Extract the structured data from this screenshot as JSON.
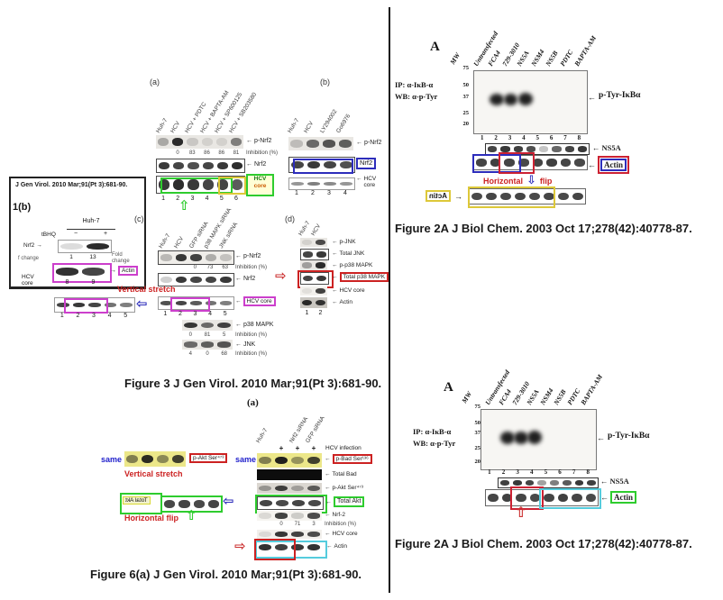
{
  "colors": {
    "annotation_red": "#cc2222",
    "annotation_blue": "#2d2dbb",
    "annotation_green": "#2ecc2e",
    "annotation_magenta": "#cc3fcc",
    "annotation_yellow": "#ddc839",
    "annotation_cyan": "#55ccdd"
  },
  "icons": {
    "band_arrow_left": "←",
    "band_arrow_right": "→",
    "hollow_left": "⇦",
    "hollow_right": "⇨",
    "hollow_up": "⇧",
    "hollow_down": "⇩"
  },
  "left": {
    "inset": {
      "citation": "J Gen Virol. 2010 Mar;91(Pt 3):681-90.",
      "panel_label": "1(b)",
      "cell_line": "Huh-7",
      "tbhq": "tBHQ",
      "minus": "−",
      "plus": "+",
      "nrf2": "Nrf2",
      "fold_left": "f change",
      "fold_values": [
        "1",
        "13"
      ],
      "fold_right": "Fold change",
      "actin": "Actin",
      "hcv_core": "HCV core",
      "lane_numbers": [
        "8",
        "9"
      ]
    },
    "panel_a": {
      "label": "(a)",
      "lanes": [
        "Huh-7",
        "HCV",
        "HCV + PDTC",
        "HCV + BAPTA-AM",
        "HCV + SP600125",
        "HCV + SB203580"
      ],
      "row_pnrf2": "p-Nrf2",
      "inhibition_values": [
        "0",
        "83",
        "86",
        "86",
        "81"
      ],
      "inhibition_label": "Inhibition (%)",
      "row_nrf2": "Nrf2",
      "hcv_core_line1": "HCV",
      "hcv_core_line2": "core",
      "lane_numbers": [
        "1",
        "2",
        "3",
        "4",
        "5",
        "6"
      ]
    },
    "panel_b": {
      "label": "(b)",
      "lanes": [
        "Huh-7",
        "HCV",
        "LY294002",
        "Go6976"
      ],
      "row_pnrf2": "p-Nrf2",
      "row_nrf2": "Nrf2",
      "row_hcv_core": "HCV core",
      "lane_numbers": [
        "1",
        "2",
        "3",
        "4"
      ]
    },
    "panel_c": {
      "label": "(c)",
      "lanes": [
        "Huh-7",
        "HCV",
        "GFP siRNA",
        "p38 MAPK siRNA",
        "JNK siRNA"
      ],
      "row_pnrf2": "p-Nrf2",
      "inh1": [
        "0",
        "73",
        "63"
      ],
      "row_nrf2": "Nrf2",
      "row_hcv_core": "HCV core",
      "lane_numbers": [
        "1",
        "2",
        "3",
        "4",
        "5"
      ],
      "row_p38": "p38 MAPK",
      "inh2": [
        "0",
        "81",
        "5"
      ],
      "row_jnk": "JNK",
      "inh3": [
        "4",
        "0",
        "68"
      ],
      "inhibition_label": "Inhibition (%)"
    },
    "panel_d": {
      "label": "(d)",
      "lanes": [
        "Huh-7",
        "HCV"
      ],
      "row_pjnk": "p-JNK",
      "row_tjnk": "Total JNK",
      "row_pp38": "p-p38 MAPK",
      "row_tp38": "Total p38 MAPK",
      "row_hcv": "HCV core",
      "row_actin": "Actin",
      "lane_numbers": [
        "1",
        "2"
      ]
    },
    "vertical_stretch": "Vertical stretch",
    "dup_lane_numbers": [
      "1",
      "2",
      "3",
      "4",
      "5"
    ],
    "caption_fig3": "Figure 3 J Gen Virol. 2010 Mar;91(Pt 3):681-90.",
    "fig6": {
      "label": "(a)",
      "lane_huh7": "Huh-7",
      "lane_nrf2_sirna": "Nrf2 siRNA",
      "lane_gfp_sirna": "GFP siRNA",
      "plus_values": [
        "+",
        "+",
        "+"
      ],
      "hcv_infection": "HCV infection",
      "row_pbad": "p-Bad Ser¹³⁶",
      "row_total_bad": "Total Bad",
      "row_pakt": "p-Akt Ser⁴⁷³",
      "row_total_akt": "Total Akt",
      "row_nrf2": "Nrf-2",
      "inhibition_values": [
        "0",
        "71",
        "3"
      ],
      "inhibition_label": "Inhibition (%)",
      "row_hcv_core": "HCV core",
      "row_actin": "Actin",
      "same_left": "same",
      "same_right": "same",
      "left_pakt": "p-Akt Ser⁴⁷³",
      "vertical_stretch": "Vertical stretch",
      "mirrored_total_akt": "Total Akt",
      "horizontal_flip": "Horizontal flip",
      "caption": "Figure 6(a) J Gen Virol. 2010 Mar;91(Pt 3):681-90."
    }
  },
  "right": {
    "top": {
      "panel_label": "A",
      "mw": "MW",
      "lanes": [
        "Untransfected",
        "FCA4",
        "729-3010",
        "NS5A",
        "NSM4",
        "NS5B",
        "PDTC",
        "BAPTA-AM"
      ],
      "mw_values": [
        "75",
        "50",
        "37",
        "25",
        "20"
      ],
      "ip": "IP: α-IκB-α",
      "wb": "WB: α-p-Tyr",
      "band_label": "p-Tyr-IκBα",
      "lane_numbers": [
        "1",
        "2",
        "3",
        "4",
        "5",
        "6",
        "7",
        "8"
      ],
      "ns5a": "NS5A",
      "actin": "Actin",
      "flip_word1": "Horizontal",
      "flip_word2": "flip",
      "mirrored_actin": "Actin",
      "caption": "Figure 2A J Biol Chem. 2003 Oct 17;278(42):40778-87."
    },
    "bottom": {
      "panel_label": "A",
      "mw": "MW",
      "lanes": [
        "Untransfected",
        "FCA4",
        "729-3010",
        "NS5A",
        "NSM4",
        "NS5B",
        "PDTC",
        "BAPTA-AM"
      ],
      "mw_values": [
        "75",
        "50",
        "37",
        "25",
        "20"
      ],
      "ip": "IP: α-IκB-α",
      "wb": "WB: α-p-Tyr",
      "band_label": "p-Tyr-IκBα",
      "lane_numbers": [
        "1",
        "2",
        "3",
        "4",
        "5",
        "6",
        "7",
        "8"
      ],
      "ns5a": "NS5A",
      "actin": "Actin",
      "caption": "Figure 2A J Biol Chem. 2003 Oct 17;278(42):40778-87."
    }
  }
}
